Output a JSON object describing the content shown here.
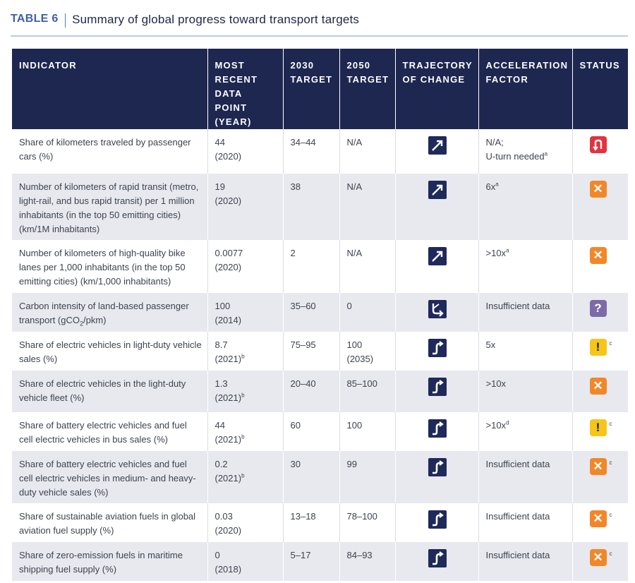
{
  "title": {
    "label": "TABLE 6",
    "text": "Summary of global progress toward transport targets"
  },
  "headers": {
    "indicator": "INDICATOR",
    "recent": "MOST RECENT DATA POINT (YEAR)",
    "t2030": "2030 TARGET",
    "t2050": "2050 TARGET",
    "trajectory": "TRAJECTORY OF CHANGE",
    "acceleration": "ACCELERATION FACTOR",
    "status": "STATUS"
  },
  "rows": [
    {
      "indicator": "Share of kilometers traveled by passenger cars (%)",
      "recent_value": "44",
      "recent_year": "(2020)",
      "recent_note": "",
      "t2030": "34–44",
      "t2050": "N/A",
      "t2050_year": "",
      "trajectory": "diagonal-up-arrow",
      "acceleration": "N/A;",
      "acceleration_line2": "U-turn needed",
      "acceleration_note": "a",
      "status": "u-turn-icon",
      "status_color": "#e3323f",
      "status_note": ""
    },
    {
      "indicator": "Number of kilometers of rapid transit (metro, light-rail, and bus rapid transit) per 1 million inhabitants (in the top 50 emitting cities) (km/1M inhabitants)",
      "recent_value": "19",
      "recent_year": "(2020)",
      "recent_note": "",
      "t2030": "38",
      "t2050": "N/A",
      "t2050_year": "",
      "trajectory": "diagonal-up-arrow",
      "acceleration": "6x",
      "acceleration_line2": "",
      "acceleration_note": "a",
      "status": "x-icon",
      "status_color": "#f2872a",
      "status_note": ""
    },
    {
      "indicator": "Number of kilometers of high-quality bike lanes per 1,000 inhabitants (in the top 50 emitting cities) (km/1,000 inhabitants)",
      "recent_value": "0.0077",
      "recent_year": "(2020)",
      "recent_note": "",
      "t2030": "2",
      "t2050": "N/A",
      "t2050_year": "",
      "trajectory": "diagonal-up-arrow",
      "acceleration": ">10x",
      "acceleration_line2": "",
      "acceleration_note": "a",
      "status": "x-icon",
      "status_color": "#f2872a",
      "status_note": ""
    },
    {
      "indicator": "Carbon intensity of land-based passenger transport (gCO",
      "indicator_sub": "2",
      "indicator_tail": "/pkm)",
      "recent_value": "100",
      "recent_year": "(2014)",
      "recent_note": "",
      "t2030": "35–60",
      "t2050": "0",
      "t2050_year": "",
      "trajectory": "down-then-right-arrow",
      "acceleration": "Insufficient data",
      "acceleration_line2": "",
      "acceleration_note": "",
      "status": "question-icon",
      "status_color": "#7d6aa8",
      "status_note": ""
    },
    {
      "indicator": "Share of electric vehicles in light-duty vehicle sales (%)",
      "recent_value": "8.7",
      "recent_year": "(2021)",
      "recent_note": "b",
      "t2030": "75–95",
      "t2050": "100",
      "t2050_year": "(2035)",
      "trajectory": "s-curve-up-arrow",
      "acceleration": "5x",
      "acceleration_line2": "",
      "acceleration_note": "",
      "status": "exclamation-icon",
      "status_color": "#f5c519",
      "status_note": "c"
    },
    {
      "indicator": "Share of electric vehicles in the light-duty vehicle fleet (%)",
      "recent_value": "1.3",
      "recent_year": "(2021)",
      "recent_note": "b",
      "t2030": "20–40",
      "t2050": "85–100",
      "t2050_year": "",
      "trajectory": "s-curve-up-arrow",
      "acceleration": ">10x",
      "acceleration_line2": "",
      "acceleration_note": "",
      "status": "x-icon",
      "status_color": "#f2872a",
      "status_note": ""
    },
    {
      "indicator": "Share of battery electric vehicles and fuel cell electric vehicles in bus sales (%)",
      "recent_value": "44",
      "recent_year": "(2021)",
      "recent_note": "b",
      "t2030": "60",
      "t2050": "100",
      "t2050_year": "",
      "trajectory": "s-curve-up-arrow",
      "acceleration": ">10x",
      "acceleration_line2": "",
      "acceleration_note": "d",
      "status": "exclamation-icon",
      "status_color": "#f5c519",
      "status_note": "c"
    },
    {
      "indicator": "Share of battery electric vehicles and fuel cell electric vehicles in medium- and heavy-duty vehicle sales (%)",
      "recent_value": "0.2",
      "recent_year": "(2021)",
      "recent_note": "b",
      "t2030": "30",
      "t2050": "99",
      "t2050_year": "",
      "trajectory": "s-curve-up-arrow",
      "acceleration": "Insufficient data",
      "acceleration_line2": "",
      "acceleration_note": "",
      "status": "x-icon",
      "status_color": "#f2872a",
      "status_note": "c"
    },
    {
      "indicator": "Share of sustainable aviation fuels in global aviation fuel supply (%)",
      "recent_value": "0.03",
      "recent_year": "(2020)",
      "recent_note": "",
      "t2030": "13–18",
      "t2050": "78–100",
      "t2050_year": "",
      "trajectory": "s-curve-up-arrow",
      "acceleration": "Insufficient data",
      "acceleration_line2": "",
      "acceleration_note": "",
      "status": "x-icon",
      "status_color": "#f2872a",
      "status_note": "c"
    },
    {
      "indicator": "Share of zero-emission fuels in maritime shipping fuel supply (%)",
      "recent_value": "0",
      "recent_year": "(2018)",
      "recent_note": "",
      "t2030": "5–17",
      "t2050": "84–93",
      "t2050_year": "",
      "trajectory": "s-curve-up-arrow",
      "acceleration": "Insufficient data",
      "acceleration_line2": "",
      "acceleration_note": "",
      "status": "x-icon",
      "status_color": "#f2872a",
      "status_note": "c"
    }
  ]
}
